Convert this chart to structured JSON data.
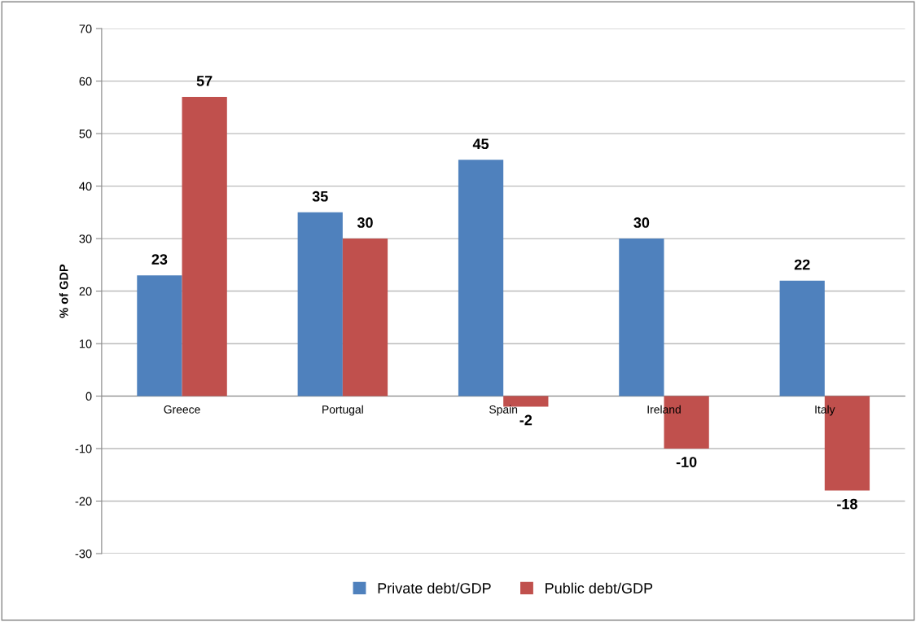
{
  "chart_data": {
    "type": "bar",
    "ylabel": "% of GDP",
    "categories": [
      "Greece",
      "Portugal",
      "Spain",
      "Ireland",
      "Italy"
    ],
    "series": [
      {
        "name": "Private debt/GDP",
        "color": "#4f81bd",
        "values": [
          23,
          35,
          45,
          30,
          22
        ]
      },
      {
        "name": "Public debt/GDP",
        "color": "#c0504d",
        "values": [
          57,
          30,
          -2,
          -10,
          -18
        ]
      }
    ],
    "ylim": [
      -30,
      70
    ],
    "yticks": [
      -30,
      -20,
      -10,
      0,
      10,
      20,
      30,
      40,
      50,
      60,
      70
    ],
    "grid": "y",
    "legend": "bottom",
    "data_labels": true
  }
}
